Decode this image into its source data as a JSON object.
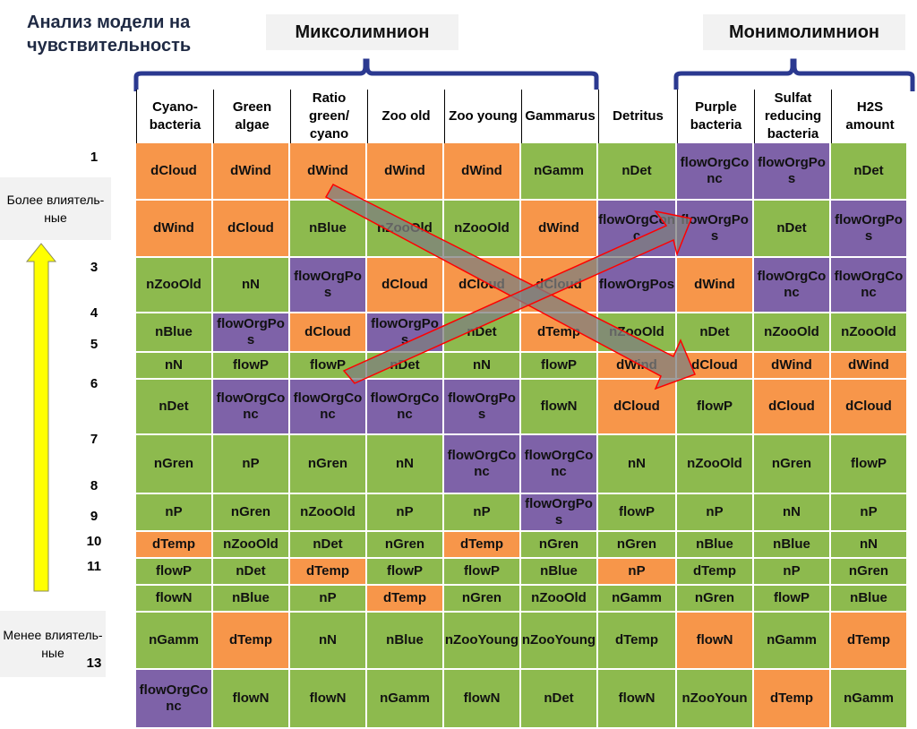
{
  "title": "Анализ модели на чувствительность",
  "groups": {
    "mixolimnion": "Миксолимнион",
    "monimolimnion": "Монимолимнион"
  },
  "side_labels": {
    "more": "Более влиятель-ные",
    "less": "Менее влиятель-ные"
  },
  "columns": [
    "Cyano-bacteria",
    "Green algae",
    "Ratio green/ cyano",
    "Zoo old",
    "Zoo young",
    "Gammarus",
    "Detritus",
    "Purple bacteria",
    "Sulfat reducing bacteria",
    "H2S amount"
  ],
  "row_numbers": [
    "1",
    "",
    "3",
    "4",
    "5",
    "6",
    "7",
    "8",
    "9",
    "10",
    "11",
    "",
    "13"
  ],
  "rows": [
    [
      [
        "dCloud",
        "o"
      ],
      [
        "dWind",
        "o"
      ],
      [
        "dWind",
        "o"
      ],
      [
        "dWind",
        "o"
      ],
      [
        "dWind",
        "o"
      ],
      [
        "nGamm",
        "g"
      ],
      [
        "nDet",
        "g"
      ],
      [
        "flowOrgConc",
        "p"
      ],
      [
        "flowOrgPos",
        "p"
      ],
      [
        "nDet",
        "g"
      ]
    ],
    [
      [
        "dWind",
        "o"
      ],
      [
        "dCloud",
        "o"
      ],
      [
        "nBlue",
        "g"
      ],
      [
        "nZooOld",
        "g"
      ],
      [
        "nZooOld",
        "g"
      ],
      [
        "dWind",
        "o"
      ],
      [
        "flowOrgConc",
        "p"
      ],
      [
        "flowOrgPos",
        "p"
      ],
      [
        "nDet",
        "g"
      ],
      [
        "flowOrgPos",
        "p"
      ]
    ],
    [
      [
        "nZooOld",
        "g"
      ],
      [
        "nN",
        "g"
      ],
      [
        "flowOrgPos",
        "p"
      ],
      [
        "dCloud",
        "o"
      ],
      [
        "dCloud",
        "o"
      ],
      [
        "dCloud",
        "o"
      ],
      [
        "flowOrgPos",
        "p"
      ],
      [
        "dWind",
        "o"
      ],
      [
        "flowOrgConc",
        "p"
      ],
      [
        "flowOrgConc",
        "p"
      ]
    ],
    [
      [
        "nBlue",
        "g"
      ],
      [
        "flowOrgPos",
        "p"
      ],
      [
        "dCloud",
        "o"
      ],
      [
        "flowOrgPos",
        "p"
      ],
      [
        "nDet",
        "g"
      ],
      [
        "dTemp",
        "o"
      ],
      [
        "nZooOld",
        "g"
      ],
      [
        "nDet",
        "g"
      ],
      [
        "nZooOld",
        "g"
      ],
      [
        "nZooOld",
        "g"
      ]
    ],
    [
      [
        "nN",
        "g"
      ],
      [
        "flowP",
        "g"
      ],
      [
        "flowP",
        "g"
      ],
      [
        "nDet",
        "g"
      ],
      [
        "nN",
        "g"
      ],
      [
        "flowP",
        "g"
      ],
      [
        "dWind",
        "o"
      ],
      [
        "dCloud",
        "o"
      ],
      [
        "dWind",
        "o"
      ],
      [
        "dWind",
        "o"
      ]
    ],
    [
      [
        "nDet",
        "g"
      ],
      [
        "flowOrgConc",
        "p"
      ],
      [
        "flowOrgConc",
        "p"
      ],
      [
        "flowOrgConc",
        "p"
      ],
      [
        "flowOrgPos",
        "p"
      ],
      [
        "flowN",
        "g"
      ],
      [
        "dCloud",
        "o"
      ],
      [
        "flowP",
        "g"
      ],
      [
        "dCloud",
        "o"
      ],
      [
        "dCloud",
        "o"
      ]
    ],
    [
      [
        "nGren",
        "g"
      ],
      [
        "nP",
        "g"
      ],
      [
        "nGren",
        "g"
      ],
      [
        "nN",
        "g"
      ],
      [
        "flowOrgConc",
        "p"
      ],
      [
        "flowOrgConc",
        "p"
      ],
      [
        "nN",
        "g"
      ],
      [
        "nZooOld",
        "g"
      ],
      [
        "nGren",
        "g"
      ],
      [
        "flowP",
        "g"
      ]
    ],
    [
      [
        "nP",
        "g"
      ],
      [
        "nGren",
        "g"
      ],
      [
        "nZooOld",
        "g"
      ],
      [
        "nP",
        "g"
      ],
      [
        "nP",
        "g"
      ],
      [
        "flowOrgPos",
        "p"
      ],
      [
        "flowP",
        "g"
      ],
      [
        "nP",
        "g"
      ],
      [
        "nN",
        "g"
      ],
      [
        "nP",
        "g"
      ]
    ],
    [
      [
        "dTemp",
        "o"
      ],
      [
        "nZooOld",
        "g"
      ],
      [
        "nDet",
        "g"
      ],
      [
        "nGren",
        "g"
      ],
      [
        "dTemp",
        "o"
      ],
      [
        "nGren",
        "g"
      ],
      [
        "nGren",
        "g"
      ],
      [
        "nBlue",
        "g"
      ],
      [
        "nBlue",
        "g"
      ],
      [
        "nN",
        "g"
      ]
    ],
    [
      [
        "flowP",
        "g"
      ],
      [
        "nDet",
        "g"
      ],
      [
        "dTemp",
        "o"
      ],
      [
        "flowP",
        "g"
      ],
      [
        "flowP",
        "g"
      ],
      [
        "nBlue",
        "g"
      ],
      [
        "nP",
        "o"
      ],
      [
        "dTemp",
        "g"
      ],
      [
        "nP",
        "g"
      ],
      [
        "nGren",
        "g"
      ]
    ],
    [
      [
        "flowN",
        "g"
      ],
      [
        "nBlue",
        "g"
      ],
      [
        "nP",
        "g"
      ],
      [
        "dTemp",
        "o"
      ],
      [
        "nGren",
        "g"
      ],
      [
        "nZooOld",
        "g"
      ],
      [
        "nGamm",
        "g"
      ],
      [
        "nGren",
        "g"
      ],
      [
        "flowP",
        "g"
      ],
      [
        "nBlue",
        "g"
      ]
    ],
    [
      [
        "nGamm",
        "g"
      ],
      [
        "dTemp",
        "o"
      ],
      [
        "nN",
        "g"
      ],
      [
        "nBlue",
        "g"
      ],
      [
        "nZooYoung",
        "g"
      ],
      [
        "nZooYoung",
        "g"
      ],
      [
        "dTemp",
        "g"
      ],
      [
        "flowN",
        "o"
      ],
      [
        "nGamm",
        "g"
      ],
      [
        "dTemp",
        "o"
      ]
    ],
    [
      [
        "flowOrgConc",
        "p"
      ],
      [
        "flowN",
        "g"
      ],
      [
        "flowN",
        "g"
      ],
      [
        "nGamm",
        "g"
      ],
      [
        "flowN",
        "g"
      ],
      [
        "nDet",
        "g"
      ],
      [
        "flowN",
        "g"
      ],
      [
        "nZooYoun",
        "g"
      ],
      [
        "dTemp",
        "o"
      ],
      [
        "nGamm",
        "g"
      ]
    ]
  ],
  "colors": {
    "green": "#8dba4e",
    "orange": "#f7964a",
    "purple": "#7e62a8",
    "brace": "#2b3990",
    "arrow_fill": "#7f7f7f",
    "arrow_stroke": "#ff0000",
    "up_arrow": "#ffff00"
  }
}
